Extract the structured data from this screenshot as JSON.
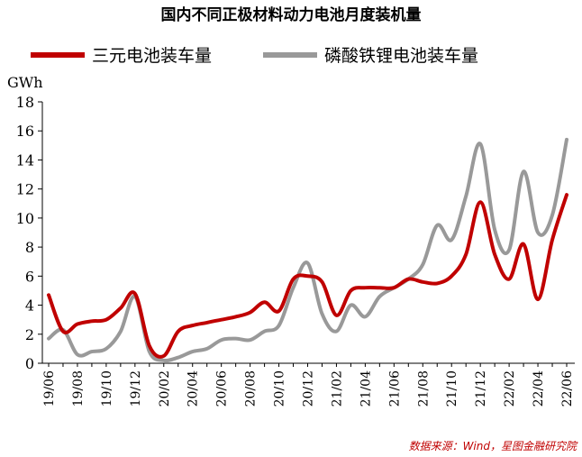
{
  "title": "国内不同正极材料动力电池月度装机量",
  "source": "数据来源：Wind，星图金融研究院",
  "chart_data": {
    "type": "line",
    "title": "国内不同正极材料动力电池月度装机量",
    "ylabel": "GWh",
    "ylim": [
      0,
      18
    ],
    "yticks": [
      0,
      2,
      4,
      6,
      8,
      10,
      12,
      14,
      16,
      18
    ],
    "legend_position": "top",
    "grid": false,
    "x": [
      "19/06",
      "19/07",
      "19/08",
      "19/09",
      "19/10",
      "19/11",
      "19/12",
      "20/01",
      "20/02",
      "20/03",
      "20/04",
      "20/05",
      "20/06",
      "20/07",
      "20/08",
      "20/09",
      "20/10",
      "20/11",
      "20/12",
      "21/01",
      "21/02",
      "21/03",
      "21/04",
      "21/05",
      "21/06",
      "21/07",
      "21/08",
      "21/09",
      "21/10",
      "21/11",
      "21/12",
      "22/01",
      "22/02",
      "22/03",
      "22/04",
      "22/05",
      "22/06"
    ],
    "xticklabels": [
      "19/06",
      "19/08",
      "19/10",
      "19/12",
      "20/02",
      "20/04",
      "20/06",
      "20/08",
      "20/10",
      "20/12",
      "21/02",
      "21/04",
      "21/06",
      "21/08",
      "21/10",
      "21/12",
      "22/02",
      "22/04",
      "22/06"
    ],
    "series": [
      {
        "name": "三元电池装车量",
        "color": "#c00000",
        "values": [
          4.7,
          2.2,
          2.7,
          2.9,
          3.0,
          3.8,
          4.8,
          1.2,
          0.5,
          2.2,
          2.6,
          2.8,
          3.0,
          3.2,
          3.5,
          4.2,
          3.6,
          5.8,
          6.0,
          5.6,
          3.3,
          5.0,
          5.2,
          5.2,
          5.2,
          5.8,
          5.6,
          5.5,
          6.0,
          7.5,
          11.1,
          7.5,
          5.8,
          8.2,
          4.4,
          8.5,
          11.6
        ]
      },
      {
        "name": "磷酸铁锂电池装车量",
        "color": "#999999",
        "values": [
          1.7,
          2.3,
          0.6,
          0.8,
          1.0,
          2.2,
          4.6,
          0.8,
          0.2,
          0.4,
          0.8,
          1.0,
          1.6,
          1.7,
          1.6,
          2.2,
          2.6,
          5.2,
          6.9,
          3.4,
          2.2,
          4.0,
          3.2,
          4.6,
          5.2,
          5.8,
          6.8,
          9.5,
          8.5,
          11.5,
          15.1,
          9.2,
          7.8,
          13.2,
          9.0,
          10.2,
          15.4
        ]
      }
    ]
  }
}
